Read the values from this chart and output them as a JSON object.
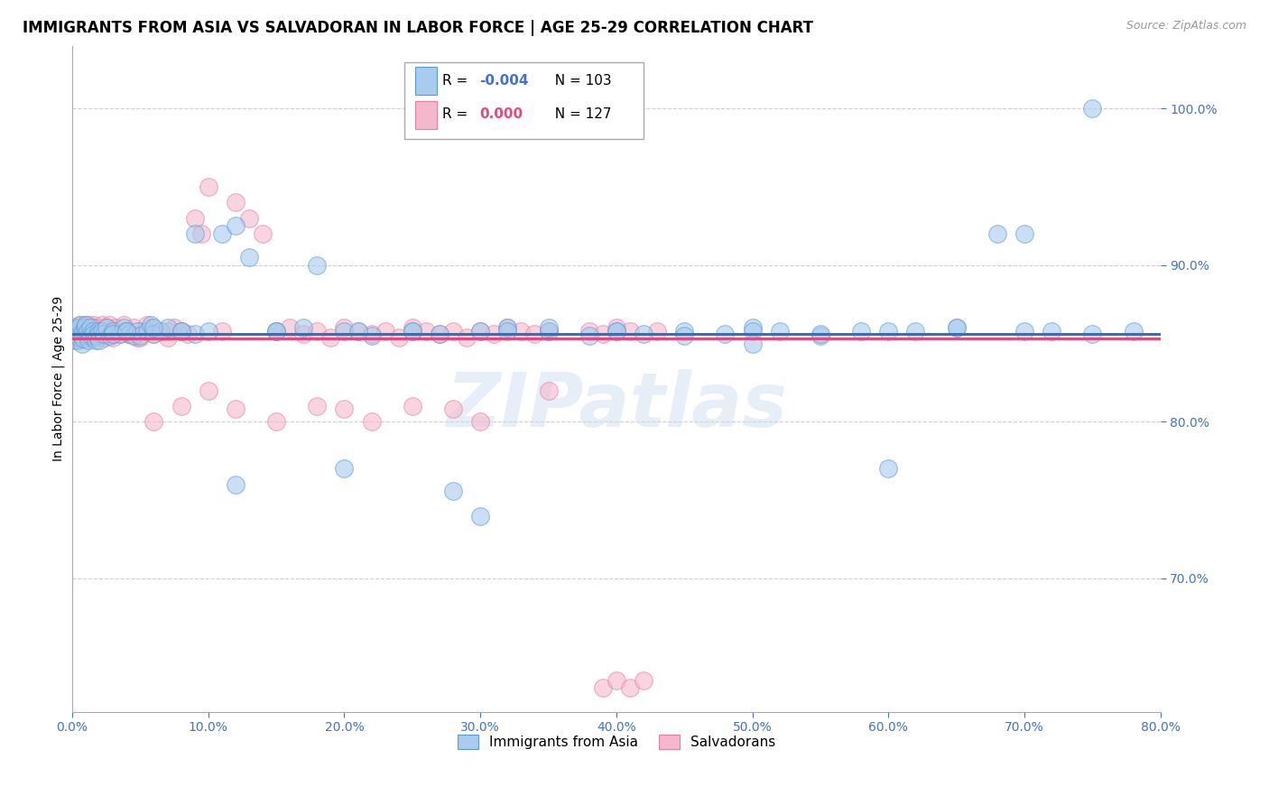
{
  "title": "IMMIGRANTS FROM ASIA VS SALVADORAN IN LABOR FORCE | AGE 25-29 CORRELATION CHART",
  "source_text": "Source: ZipAtlas.com",
  "ylabel": "In Labor Force | Age 25-29",
  "watermark": "ZIPatlas",
  "xlim": [
    0.0,
    0.8
  ],
  "ylim": [
    0.615,
    1.04
  ],
  "yticks": [
    0.7,
    0.8,
    0.9,
    1.0
  ],
  "xticks": [
    0.0,
    0.1,
    0.2,
    0.3,
    0.4,
    0.5,
    0.6,
    0.7,
    0.8
  ],
  "series_blue": {
    "label": "Immigrants from Asia",
    "R": "-0.004",
    "N": 103,
    "color": "#A8CBEE",
    "edge_color": "#5B9BD5",
    "line_color": "#2E75B6",
    "x": [
      0.001,
      0.002,
      0.002,
      0.003,
      0.003,
      0.004,
      0.005,
      0.005,
      0.006,
      0.006,
      0.007,
      0.007,
      0.008,
      0.008,
      0.009,
      0.01,
      0.01,
      0.011,
      0.011,
      0.012,
      0.013,
      0.013,
      0.014,
      0.015,
      0.016,
      0.017,
      0.018,
      0.019,
      0.02,
      0.02,
      0.022,
      0.023,
      0.025,
      0.028,
      0.03,
      0.035,
      0.038,
      0.04,
      0.042,
      0.045,
      0.048,
      0.05,
      0.055,
      0.058,
      0.06,
      0.065,
      0.07,
      0.08,
      0.09,
      0.1,
      0.11,
      0.13,
      0.15,
      0.17,
      0.2,
      0.22,
      0.25,
      0.27,
      0.3,
      0.32,
      0.35,
      0.38,
      0.4,
      0.42,
      0.45,
      0.48,
      0.5,
      0.52,
      0.55,
      0.58,
      0.6,
      0.62,
      0.65,
      0.68,
      0.7,
      0.72,
      0.75,
      0.03,
      0.06,
      0.09,
      0.12,
      0.15,
      0.18,
      0.21,
      0.25,
      0.28,
      0.32,
      0.35,
      0.4,
      0.45,
      0.5,
      0.55,
      0.6,
      0.65,
      0.7,
      0.75,
      0.78,
      0.04,
      0.08,
      0.12,
      0.2,
      0.3,
      0.5
    ],
    "y": [
      0.856,
      0.858,
      0.855,
      0.86,
      0.852,
      0.857,
      0.854,
      0.86,
      0.856,
      0.862,
      0.85,
      0.855,
      0.858,
      0.853,
      0.86,
      0.856,
      0.862,
      0.855,
      0.858,
      0.852,
      0.856,
      0.86,
      0.855,
      0.858,
      0.856,
      0.852,
      0.855,
      0.858,
      0.856,
      0.852,
      0.858,
      0.856,
      0.86,
      0.855,
      0.858,
      0.856,
      0.86,
      0.858,
      0.856,
      0.855,
      0.858,
      0.855,
      0.858,
      0.862,
      0.856,
      0.858,
      0.86,
      0.858,
      0.856,
      0.858,
      0.92,
      0.905,
      0.858,
      0.86,
      0.858,
      0.855,
      0.858,
      0.856,
      0.858,
      0.86,
      0.858,
      0.855,
      0.858,
      0.856,
      0.858,
      0.856,
      0.86,
      0.858,
      0.855,
      0.858,
      0.77,
      0.858,
      0.86,
      0.92,
      0.92,
      0.858,
      1.0,
      0.856,
      0.86,
      0.92,
      0.925,
      0.858,
      0.9,
      0.858,
      0.858,
      0.756,
      0.858,
      0.86,
      0.858,
      0.855,
      0.858,
      0.856,
      0.858,
      0.86,
      0.858,
      0.856,
      0.858,
      0.858,
      0.858,
      0.76,
      0.77,
      0.74,
      0.85
    ]
  },
  "series_pink": {
    "label": "Salvadorans",
    "R": "0.000",
    "N": 127,
    "color": "#F4B8CC",
    "edge_color": "#E87FA0",
    "line_color": "#E84880",
    "x": [
      0.001,
      0.001,
      0.002,
      0.002,
      0.002,
      0.003,
      0.003,
      0.004,
      0.004,
      0.005,
      0.005,
      0.005,
      0.006,
      0.006,
      0.007,
      0.007,
      0.008,
      0.008,
      0.009,
      0.009,
      0.01,
      0.01,
      0.01,
      0.011,
      0.011,
      0.012,
      0.012,
      0.013,
      0.013,
      0.014,
      0.015,
      0.015,
      0.016,
      0.016,
      0.017,
      0.018,
      0.018,
      0.019,
      0.02,
      0.02,
      0.021,
      0.022,
      0.022,
      0.023,
      0.024,
      0.025,
      0.025,
      0.026,
      0.027,
      0.028,
      0.03,
      0.03,
      0.032,
      0.033,
      0.035,
      0.038,
      0.04,
      0.042,
      0.045,
      0.048,
      0.05,
      0.055,
      0.058,
      0.06,
      0.065,
      0.07,
      0.075,
      0.08,
      0.085,
      0.09,
      0.095,
      0.1,
      0.11,
      0.12,
      0.13,
      0.14,
      0.15,
      0.16,
      0.17,
      0.18,
      0.19,
      0.2,
      0.21,
      0.22,
      0.23,
      0.24,
      0.25,
      0.26,
      0.27,
      0.28,
      0.29,
      0.3,
      0.31,
      0.32,
      0.33,
      0.34,
      0.35,
      0.005,
      0.01,
      0.015,
      0.02,
      0.025,
      0.03,
      0.04,
      0.05,
      0.06,
      0.07,
      0.08,
      0.1,
      0.12,
      0.15,
      0.18,
      0.2,
      0.22,
      0.25,
      0.28,
      0.3,
      0.35,
      0.39,
      0.4,
      0.41,
      0.42,
      0.43,
      0.38,
      0.39,
      0.4,
      0.41
    ],
    "y": [
      0.858,
      0.854,
      0.856,
      0.86,
      0.852,
      0.858,
      0.854,
      0.86,
      0.856,
      0.858,
      0.852,
      0.862,
      0.858,
      0.856,
      0.86,
      0.854,
      0.858,
      0.856,
      0.862,
      0.858,
      0.856,
      0.86,
      0.854,
      0.858,
      0.856,
      0.862,
      0.858,
      0.856,
      0.86,
      0.854,
      0.858,
      0.856,
      0.862,
      0.858,
      0.86,
      0.856,
      0.858,
      0.854,
      0.86,
      0.856,
      0.858,
      0.862,
      0.856,
      0.858,
      0.854,
      0.86,
      0.856,
      0.858,
      0.862,
      0.856,
      0.858,
      0.854,
      0.86,
      0.858,
      0.856,
      0.862,
      0.858,
      0.856,
      0.86,
      0.854,
      0.858,
      0.862,
      0.86,
      0.856,
      0.858,
      0.854,
      0.86,
      0.858,
      0.856,
      0.93,
      0.92,
      0.95,
      0.858,
      0.94,
      0.93,
      0.92,
      0.858,
      0.86,
      0.856,
      0.858,
      0.854,
      0.86,
      0.858,
      0.856,
      0.858,
      0.854,
      0.86,
      0.858,
      0.856,
      0.858,
      0.854,
      0.858,
      0.856,
      0.86,
      0.858,
      0.856,
      0.858,
      0.856,
      0.858,
      0.86,
      0.858,
      0.86,
      0.856,
      0.858,
      0.854,
      0.8,
      0.858,
      0.81,
      0.82,
      0.808,
      0.8,
      0.81,
      0.808,
      0.8,
      0.81,
      0.808,
      0.8,
      0.82,
      0.63,
      0.635,
      0.63,
      0.635,
      0.858,
      0.858,
      0.856,
      0.86,
      0.858
    ]
  },
  "background_color": "#FFFFFF",
  "grid_color": "#D0D0D0",
  "title_fontsize": 12,
  "axis_label_fontsize": 10,
  "tick_label_color": "#4472C4",
  "legend_R_color_blue": "#4472C4",
  "legend_R_color_pink": "#E84880"
}
